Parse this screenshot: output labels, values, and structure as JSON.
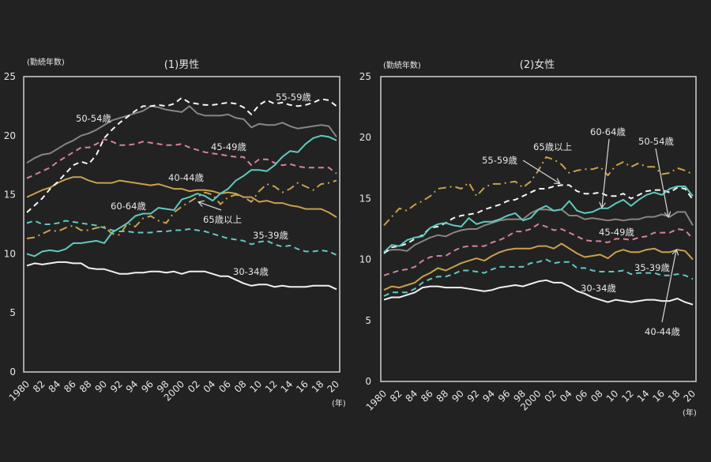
{
  "chart_data": [
    {
      "type": "line",
      "title": "(1)男性",
      "ylabel": "(勤続年数)",
      "xlabel": "(年)",
      "ylim": [
        0,
        25
      ],
      "yticks": [
        "0",
        "5",
        "10",
        "15",
        "20",
        "25"
      ],
      "xlim": [
        1980,
        2020
      ],
      "xticks": [
        "1980",
        "82",
        "84",
        "86",
        "88",
        "90",
        "92",
        "94",
        "96",
        "98",
        "2000",
        "02",
        "04",
        "06",
        "08",
        "10",
        "12",
        "14",
        "16",
        "18",
        "20"
      ],
      "x": [
        1980,
        1981,
        1982,
        1983,
        1984,
        1985,
        1986,
        1987,
        1988,
        1989,
        1990,
        1991,
        1992,
        1993,
        1994,
        1995,
        1996,
        1997,
        1998,
        1999,
        2000,
        2001,
        2002,
        2003,
        2004,
        2005,
        2006,
        2007,
        2008,
        2009,
        2010,
        2011,
        2012,
        2013,
        2014,
        2015,
        2016,
        2017,
        2018,
        2019,
        2020
      ],
      "series": [
        {
          "name": "30-34歳",
          "color": "#f0f0f0",
          "style": "solid",
          "values": [
            9.0,
            9.2,
            9.1,
            9.2,
            9.3,
            9.3,
            9.2,
            9.2,
            8.8,
            8.7,
            8.7,
            8.5,
            8.3,
            8.3,
            8.4,
            8.4,
            8.5,
            8.5,
            8.4,
            8.5,
            8.3,
            8.5,
            8.5,
            8.5,
            8.3,
            8.1,
            8.1,
            7.8,
            7.5,
            7.3,
            7.4,
            7.4,
            7.2,
            7.3,
            7.2,
            7.2,
            7.2,
            7.3,
            7.3,
            7.3,
            7.0
          ]
        },
        {
          "name": "35-39歳",
          "color": "#5fc9c0",
          "style": "dash",
          "values": [
            12.6,
            12.8,
            12.5,
            12.5,
            12.6,
            12.8,
            12.7,
            12.6,
            12.5,
            12.4,
            12.2,
            12.0,
            11.9,
            11.9,
            11.8,
            11.8,
            11.8,
            11.9,
            11.9,
            12.0,
            12.0,
            12.1,
            12.0,
            11.9,
            11.7,
            11.5,
            11.3,
            11.2,
            11.1,
            10.8,
            11.0,
            11.1,
            10.8,
            10.6,
            10.7,
            10.4,
            10.2,
            10.2,
            10.3,
            10.2,
            9.9
          ]
        },
        {
          "name": "40-44歳",
          "color": "#c9a04e",
          "style": "solid",
          "values": [
            14.8,
            15.1,
            15.4,
            15.6,
            16.0,
            16.3,
            16.5,
            16.5,
            16.2,
            16.0,
            16.0,
            16.0,
            16.2,
            16.1,
            16.0,
            15.9,
            15.8,
            15.9,
            15.7,
            15.5,
            15.5,
            15.3,
            15.4,
            15.4,
            15.3,
            15.1,
            15.2,
            15.1,
            14.8,
            14.8,
            14.4,
            14.5,
            14.3,
            14.3,
            14.1,
            14.0,
            13.8,
            13.8,
            13.8,
            13.5,
            13.1
          ]
        },
        {
          "name": "45-49歳",
          "color": "#d4839c",
          "style": "dash",
          "values": [
            16.4,
            16.7,
            17.0,
            17.3,
            17.8,
            18.2,
            18.6,
            19.0,
            19.0,
            19.3,
            19.7,
            19.5,
            19.2,
            19.2,
            19.3,
            19.5,
            19.4,
            19.3,
            19.2,
            19.2,
            19.3,
            19.0,
            18.8,
            18.6,
            18.5,
            18.4,
            18.3,
            18.2,
            18.2,
            17.5,
            18.0,
            18.0,
            17.7,
            17.5,
            17.6,
            17.4,
            17.3,
            17.3,
            17.3,
            17.3,
            16.8
          ]
        },
        {
          "name": "50-54歳",
          "color": "#8a8580",
          "style": "solid",
          "values": [
            17.7,
            18.1,
            18.4,
            18.5,
            18.9,
            19.3,
            19.6,
            20.0,
            20.2,
            20.5,
            20.9,
            21.3,
            21.5,
            21.7,
            21.9,
            22.1,
            22.5,
            22.4,
            22.2,
            22.1,
            22.0,
            22.5,
            21.9,
            21.7,
            21.7,
            21.7,
            21.8,
            21.5,
            21.4,
            20.7,
            21.0,
            20.9,
            20.9,
            21.1,
            20.8,
            20.6,
            20.7,
            20.8,
            20.9,
            20.8,
            19.9
          ]
        },
        {
          "name": "55-59歳",
          "color": "#f5f5f5",
          "style": "dash",
          "values": [
            13.5,
            14.1,
            14.7,
            15.5,
            16.1,
            16.8,
            17.5,
            17.8,
            17.6,
            18.4,
            19.8,
            20.5,
            21.1,
            21.6,
            22.1,
            22.5,
            22.5,
            22.6,
            22.5,
            22.7,
            23.2,
            22.8,
            22.7,
            22.6,
            22.6,
            22.7,
            22.8,
            22.7,
            22.4,
            21.8,
            22.6,
            23.0,
            22.7,
            22.8,
            22.6,
            22.5,
            22.6,
            22.8,
            23.1,
            23.0,
            22.5
          ]
        },
        {
          "name": "60-64歳",
          "color": "#5fc9c0",
          "style": "solid",
          "values": [
            10.0,
            9.8,
            10.2,
            10.3,
            10.2,
            10.4,
            10.9,
            10.9,
            11.0,
            11.1,
            10.9,
            11.8,
            12.2,
            12.6,
            13.2,
            13.4,
            13.4,
            13.9,
            13.8,
            13.7,
            14.6,
            14.8,
            15.1,
            14.9,
            14.5,
            15.1,
            15.5,
            16.2,
            16.6,
            17.1,
            17.1,
            17.0,
            17.5,
            18.2,
            18.7,
            18.6,
            19.3,
            19.8,
            20.0,
            19.9,
            19.6
          ]
        },
        {
          "name": "65歳以上",
          "color": "#c9a04e",
          "style": "dashdot",
          "values": [
            11.3,
            11.4,
            11.7,
            12.0,
            11.9,
            12.2,
            12.4,
            12.0,
            12.0,
            12.2,
            12.3,
            11.7,
            11.6,
            12.6,
            12.3,
            13.0,
            13.2,
            12.8,
            12.6,
            13.5,
            14.0,
            14.4,
            14.8,
            15.2,
            15.0,
            14.2,
            14.8,
            15.0,
            14.8,
            14.4,
            15.3,
            15.9,
            15.7,
            15.2,
            15.5,
            16.0,
            15.7,
            15.4,
            15.9,
            16.0,
            16.2
          ]
        }
      ],
      "annotations": [
        {
          "text": "50-54歳"
        },
        {
          "text": "55-59歳"
        },
        {
          "text": "45-49歳"
        },
        {
          "text": "40-44歳"
        },
        {
          "text": "60-64歳"
        },
        {
          "text": "65歳以上",
          "arrow": true
        },
        {
          "text": "35-39歳"
        },
        {
          "text": "30-34歳"
        }
      ]
    },
    {
      "type": "line",
      "title": "(2)女性",
      "ylabel": "(勤続年数)",
      "xlabel": "(年)",
      "ylim": [
        0,
        25
      ],
      "yticks": [
        "0",
        "5",
        "10",
        "15",
        "20",
        "25"
      ],
      "xlim": [
        1980,
        2020
      ],
      "xticks": [
        "1980",
        "82",
        "84",
        "86",
        "88",
        "90",
        "92",
        "94",
        "96",
        "98",
        "2000",
        "02",
        "04",
        "06",
        "08",
        "10",
        "12",
        "14",
        "16",
        "18",
        "20"
      ],
      "x": [
        1980,
        1981,
        1982,
        1983,
        1984,
        1985,
        1986,
        1987,
        1988,
        1989,
        1990,
        1991,
        1992,
        1993,
        1994,
        1995,
        1996,
        1997,
        1998,
        1999,
        2000,
        2001,
        2002,
        2003,
        2004,
        2005,
        2006,
        2007,
        2008,
        2009,
        2010,
        2011,
        2012,
        2013,
        2014,
        2015,
        2016,
        2017,
        2018,
        2019,
        2020
      ],
      "series": [
        {
          "name": "30-34歳",
          "color": "#f0f0f0",
          "style": "solid",
          "values": [
            6.7,
            6.9,
            6.9,
            7.1,
            7.3,
            7.7,
            7.8,
            7.8,
            7.7,
            7.7,
            7.7,
            7.6,
            7.5,
            7.4,
            7.5,
            7.7,
            7.8,
            7.9,
            7.8,
            8.0,
            8.2,
            8.3,
            8.1,
            8.1,
            7.8,
            7.4,
            7.2,
            6.9,
            6.7,
            6.5,
            6.7,
            6.6,
            6.5,
            6.6,
            6.7,
            6.7,
            6.6,
            6.6,
            6.8,
            6.5,
            6.3
          ]
        },
        {
          "name": "35-39歳",
          "color": "#5fc9c0",
          "style": "dash",
          "values": [
            7.0,
            7.3,
            7.3,
            7.3,
            7.6,
            8.1,
            8.4,
            8.6,
            8.6,
            8.8,
            9.1,
            9.1,
            9.0,
            8.9,
            9.2,
            9.4,
            9.4,
            9.4,
            9.4,
            9.7,
            9.8,
            10.0,
            9.7,
            9.8,
            9.8,
            9.3,
            9.3,
            9.1,
            9.0,
            9.0,
            9.0,
            9.1,
            8.8,
            8.9,
            8.9,
            8.9,
            8.7,
            8.7,
            8.8,
            8.7,
            8.4
          ]
        },
        {
          "name": "40-44歳",
          "color": "#c9a04e",
          "style": "solid",
          "values": [
            7.5,
            7.8,
            7.7,
            7.9,
            8.1,
            8.6,
            8.9,
            9.3,
            9.1,
            9.4,
            9.7,
            9.9,
            10.1,
            9.9,
            10.3,
            10.6,
            10.8,
            10.9,
            10.9,
            10.9,
            11.1,
            11.1,
            10.9,
            11.3,
            10.9,
            10.5,
            10.2,
            10.3,
            10.4,
            10.1,
            10.6,
            10.8,
            10.6,
            10.6,
            10.8,
            10.9,
            10.6,
            10.6,
            10.8,
            10.7,
            10.0
          ]
        },
        {
          "name": "45-49歳",
          "color": "#d4839c",
          "style": "dash",
          "values": [
            8.7,
            8.9,
            9.1,
            9.2,
            9.4,
            9.9,
            10.2,
            10.3,
            10.3,
            10.7,
            11.0,
            11.1,
            11.1,
            11.1,
            11.4,
            11.6,
            11.9,
            12.3,
            12.3,
            12.5,
            12.9,
            12.7,
            12.4,
            12.5,
            12.2,
            11.9,
            11.6,
            11.5,
            11.5,
            11.4,
            11.7,
            11.7,
            11.6,
            11.8,
            11.9,
            12.2,
            12.2,
            12.2,
            12.5,
            12.4,
            11.7
          ]
        },
        {
          "name": "50-54歳",
          "color": "#8a8580",
          "style": "solid",
          "values": [
            10.6,
            10.8,
            10.8,
            10.7,
            11.2,
            11.5,
            11.8,
            12.0,
            11.9,
            12.2,
            12.4,
            12.5,
            12.5,
            12.8,
            13.0,
            13.2,
            13.3,
            13.3,
            13.3,
            13.8,
            14.1,
            14.1,
            14.0,
            14.1,
            13.6,
            13.6,
            13.3,
            13.4,
            13.3,
            13.2,
            13.3,
            13.2,
            13.3,
            13.3,
            13.5,
            13.5,
            13.7,
            13.5,
            13.9,
            13.9,
            12.8
          ]
        },
        {
          "name": "55-59歳",
          "color": "#f5f5f5",
          "style": "dash",
          "values": [
            10.5,
            11.0,
            11.1,
            11.3,
            11.7,
            12.0,
            12.6,
            12.7,
            13.0,
            13.4,
            13.6,
            13.7,
            13.8,
            14.1,
            14.3,
            14.5,
            14.8,
            14.9,
            15.2,
            15.5,
            15.8,
            15.8,
            16.0,
            16.1,
            16.1,
            15.6,
            15.4,
            15.4,
            15.5,
            15.2,
            15.2,
            15.4,
            15.0,
            15.3,
            15.6,
            15.7,
            15.7,
            15.5,
            15.9,
            15.8,
            14.9
          ]
        },
        {
          "name": "60-64歳",
          "color": "#5fc9c0",
          "style": "solid",
          "values": [
            10.6,
            11.2,
            11.1,
            11.6,
            11.8,
            11.9,
            12.6,
            12.9,
            13.0,
            12.8,
            12.7,
            13.4,
            12.9,
            13.1,
            13.1,
            13.3,
            13.6,
            13.8,
            13.2,
            13.4,
            14.1,
            14.4,
            14.0,
            14.1,
            14.8,
            14.0,
            13.8,
            13.9,
            14.2,
            14.2,
            14.6,
            14.9,
            14.4,
            14.9,
            15.3,
            15.5,
            15.3,
            15.8,
            16.0,
            16.0,
            15.2
          ]
        },
        {
          "name": "65歳以上",
          "color": "#c9a04e",
          "style": "dashdot",
          "values": [
            12.8,
            13.5,
            14.2,
            14.0,
            14.5,
            14.8,
            15.2,
            15.8,
            15.9,
            16.0,
            15.8,
            16.3,
            15.2,
            15.9,
            16.2,
            16.2,
            16.3,
            16.4,
            15.9,
            16.4,
            17.3,
            18.4,
            18.2,
            17.8,
            17.1,
            17.3,
            17.4,
            17.4,
            17.6,
            16.9,
            17.7,
            18.0,
            17.6,
            17.9,
            17.6,
            17.6,
            17.0,
            17.1,
            17.5,
            17.3,
            17.0
          ]
        }
      ],
      "annotations": [
        {
          "text": "65歳以上"
        },
        {
          "text": "55-59歳",
          "arrow": true
        },
        {
          "text": "60-64歳",
          "arrow": true
        },
        {
          "text": "50-54歳",
          "arrow": true
        },
        {
          "text": "45-49歳"
        },
        {
          "text": "35-39歳"
        },
        {
          "text": "30-34歳"
        },
        {
          "text": "40-44歳",
          "arrow": true
        }
      ]
    }
  ]
}
